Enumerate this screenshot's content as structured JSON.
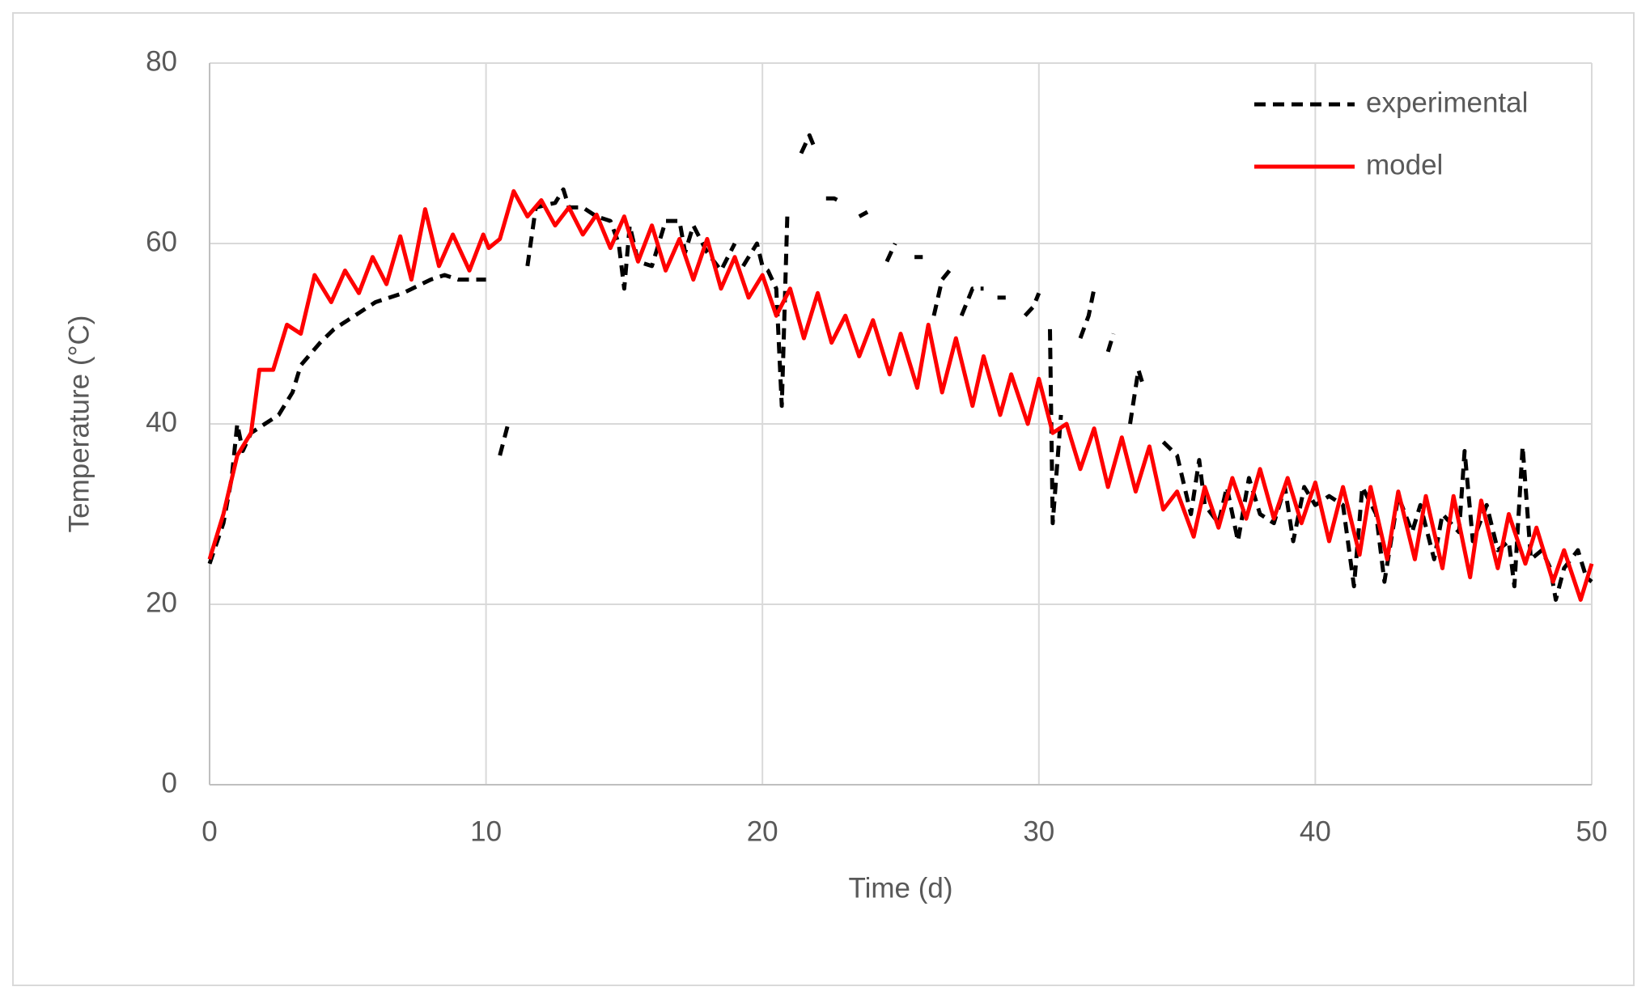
{
  "chart_data": {
    "type": "line",
    "xlabel": "Time (d)",
    "ylabel": "Temperature (°C)",
    "xlim": [
      0,
      50
    ],
    "xticks": [
      0,
      10,
      20,
      30,
      40,
      50
    ],
    "ylim": [
      0,
      80
    ],
    "yticks": [
      0,
      20,
      40,
      60,
      80
    ],
    "grid": true,
    "legend": "upper right",
    "series": [
      {
        "name": "experimental",
        "color": "#000000",
        "dash": true,
        "x": [
          0,
          0.5,
          0.8,
          1,
          1.2,
          1.5,
          2,
          2.5,
          3,
          3.3,
          4,
          4.5,
          5,
          6,
          7,
          8,
          8.5,
          9,
          10,
          null,
          10.5,
          10.8,
          null,
          11.5,
          11.8,
          12.5,
          12.8,
          13,
          13.5,
          14,
          14.5,
          14.8,
          15,
          15.2,
          15.5,
          16,
          16.5,
          17,
          17.2,
          17.5,
          18,
          18.5,
          19,
          null,
          19.3,
          19.8,
          20,
          20.2,
          20.5,
          20.7,
          20.9,
          null,
          21.4,
          21.7,
          21.9,
          null,
          22.3,
          22.6,
          22.9,
          null,
          23.5,
          23.8,
          null,
          24.5,
          24.8,
          null,
          25.5,
          25.8,
          null,
          26.2,
          26.5,
          26.9,
          null,
          27.2,
          27.6,
          28,
          null,
          28.5,
          28.8,
          null,
          29.5,
          29.8,
          30,
          null,
          30.4,
          30.5,
          30.8,
          null,
          31.5,
          31.8,
          32,
          null,
          32.5,
          32.7,
          null,
          33.3,
          33.6,
          33.8,
          null,
          34.5,
          35,
          35.5,
          35.8,
          36,
          36.5,
          36.8,
          37.2,
          37.6,
          38,
          38.5,
          38.9,
          39.2,
          39.6,
          40,
          40.5,
          41,
          41.4,
          41.7,
          42.2,
          42.5,
          43,
          43.5,
          43.8,
          44.3,
          44.6,
          45.2,
          45.4,
          45.7,
          46.2,
          46.6,
          47,
          47.2,
          47.5,
          47.8,
          48.2,
          48.5,
          48.7,
          49,
          49.5,
          49.8,
          50
        ],
        "values": [
          24.5,
          29,
          34,
          40,
          37,
          39,
          40,
          41,
          43.5,
          46.5,
          49,
          50.5,
          51.5,
          53.5,
          54.5,
          56,
          56.5,
          56,
          56,
          null,
          36.5,
          40,
          null,
          57.5,
          64,
          64.5,
          66,
          64,
          64,
          63,
          62.5,
          60,
          55,
          62,
          58,
          57.5,
          62.5,
          62.5,
          59,
          62,
          59,
          57,
          60,
          null,
          57.5,
          60,
          57.5,
          57,
          55,
          42,
          63,
          null,
          70,
          72,
          70.5,
          null,
          65,
          65,
          64.5,
          null,
          63,
          63.5,
          null,
          58,
          60,
          null,
          58.5,
          58.5,
          null,
          52,
          56,
          57.5,
          null,
          52,
          55,
          55,
          null,
          54,
          54,
          null,
          52,
          53,
          54.5,
          null,
          50.5,
          29,
          41,
          null,
          49.5,
          52,
          55,
          null,
          48,
          50,
          null,
          40,
          46,
          44,
          null,
          38,
          36.5,
          30,
          36,
          31,
          29,
          33,
          27,
          34,
          30,
          29,
          33,
          27,
          33,
          31,
          32,
          31,
          22,
          33,
          30,
          22.5,
          32,
          28,
          31,
          25,
          30,
          28,
          37,
          27,
          31,
          26,
          27,
          22,
          37.5,
          25,
          26,
          24,
          20.5,
          24,
          26,
          23,
          22.5
        ]
      },
      {
        "name": "model",
        "color": "#ff0000",
        "dash": false,
        "x": [
          0,
          0.5,
          1,
          1.5,
          1.8,
          2.3,
          2.8,
          3.3,
          3.8,
          4.4,
          4.9,
          5.4,
          5.9,
          6.4,
          6.9,
          7.3,
          7.8,
          8.3,
          8.8,
          9.4,
          9.9,
          10.1,
          10.5,
          11,
          11.5,
          12,
          12.5,
          13,
          13.5,
          14,
          14.5,
          15,
          15.5,
          16,
          16.5,
          17,
          17.5,
          18,
          18.5,
          19,
          19.5,
          20,
          20.5,
          21,
          21.5,
          22,
          22.5,
          23,
          23.5,
          24,
          24.6,
          25,
          25.6,
          26,
          26.5,
          27,
          27.6,
          28,
          28.6,
          29,
          29.6,
          30,
          30.5,
          31,
          31.5,
          32,
          32.5,
          33,
          33.5,
          34,
          34.5,
          35,
          35.6,
          36,
          36.5,
          37,
          37.5,
          38,
          38.5,
          39,
          39.5,
          40,
          40.5,
          41,
          41.6,
          42,
          42.6,
          43,
          43.6,
          44,
          44.6,
          45,
          45.6,
          46,
          46.6,
          47,
          47.6,
          48,
          48.6,
          49,
          49.6,
          50
        ],
        "values": [
          25,
          30,
          36.5,
          39,
          46,
          46,
          51,
          50,
          56.5,
          53.5,
          57,
          54.5,
          58.5,
          55.5,
          60.8,
          56,
          63.8,
          57.5,
          61,
          57,
          61,
          59.5,
          60.5,
          65.8,
          63,
          64.8,
          62,
          64,
          61,
          63.2,
          59.5,
          63,
          58,
          62,
          57,
          60.5,
          56,
          60.5,
          55,
          58.5,
          54,
          56.5,
          52,
          55,
          49.5,
          54.5,
          49,
          52,
          47.5,
          51.5,
          45.5,
          50,
          44,
          51,
          43.5,
          49.5,
          42,
          47.5,
          41,
          45.5,
          40,
          45,
          39,
          40,
          35,
          39.5,
          33,
          38.5,
          32.5,
          37.5,
          30.5,
          32.5,
          27.5,
          33,
          28.5,
          34,
          29.5,
          35,
          29.5,
          34,
          29,
          33.5,
          27,
          33,
          25.5,
          33,
          25,
          32.5,
          25,
          32,
          24,
          32,
          23,
          31.5,
          24,
          30,
          24.5,
          28.5,
          22.5,
          26,
          20.5,
          24.5
        ]
      }
    ]
  }
}
